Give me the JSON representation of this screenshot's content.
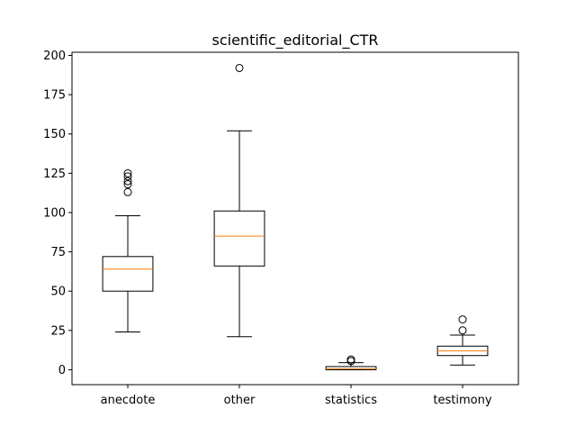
{
  "chart_data": {
    "type": "box",
    "title": "scientific_editorial_CTR",
    "xlabel": "",
    "ylabel": "",
    "ylim": [
      -9.5,
      202
    ],
    "yticks": [
      0,
      25,
      50,
      75,
      100,
      125,
      150,
      175,
      200
    ],
    "grid": false,
    "categories": [
      "anecdote",
      "other",
      "statistics",
      "testimony"
    ],
    "boxes": [
      {
        "category": "anecdote",
        "whisker_low": 24,
        "q1": 50,
        "median": 64,
        "q3": 72,
        "whisker_high": 98,
        "outliers": [
          113,
          118,
          120,
          123,
          125
        ]
      },
      {
        "category": "other",
        "whisker_low": 21,
        "q1": 66,
        "median": 85,
        "q3": 101,
        "whisker_high": 152,
        "outliers": [
          192
        ]
      },
      {
        "category": "statistics",
        "whisker_low": 0,
        "q1": 0,
        "median": 0.5,
        "q3": 2,
        "whisker_high": 4.5,
        "outliers": [
          5.5,
          6.5
        ]
      },
      {
        "category": "testimony",
        "whisker_low": 3,
        "q1": 9,
        "median": 12,
        "q3": 15,
        "whisker_high": 22,
        "outliers": [
          25,
          32
        ]
      }
    ],
    "colors": {
      "box": "#000000",
      "median": "#ff7f0e",
      "outlier": "#000000"
    }
  }
}
